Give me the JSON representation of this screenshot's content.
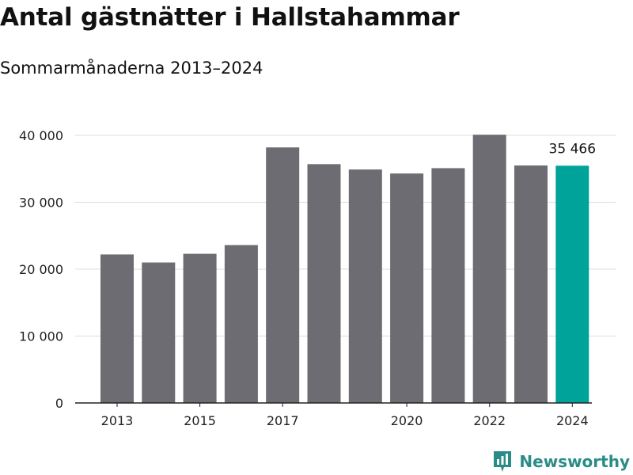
{
  "title": "Antal gästnätter i Hallstahammar",
  "subtitle": "Sommarmånaderna 2013–2024",
  "brand": {
    "name": "Newsworthy",
    "icon": "newsworthy-logo-icon",
    "color": "#2a8c87"
  },
  "colors": {
    "bar": "#6d6c72",
    "highlight": "#00a39a",
    "grid": "#dcdcdc",
    "axis": "#222222"
  },
  "chart_data": {
    "type": "bar",
    "categories": [
      "2013",
      "2014",
      "2015",
      "2016",
      "2017",
      "2018",
      "2019",
      "2020",
      "2021",
      "2022",
      "2023",
      "2024"
    ],
    "x_tick_labels": [
      "2013",
      "2015",
      "2017",
      "2020",
      "2022",
      "2024"
    ],
    "values": [
      22200,
      21000,
      22300,
      23600,
      38200,
      35700,
      34900,
      34300,
      35100,
      40100,
      35500,
      35466
    ],
    "highlight_category": "2024",
    "data_labels": [
      {
        "category": "2024",
        "text": "35 466"
      }
    ],
    "y_ticks": [
      0,
      10000,
      20000,
      30000,
      40000
    ],
    "y_tick_labels": [
      "0",
      "10 000",
      "20 000",
      "30 000",
      "40 000"
    ],
    "ylim": [
      0,
      40000
    ],
    "grid": true,
    "legend": "none"
  }
}
